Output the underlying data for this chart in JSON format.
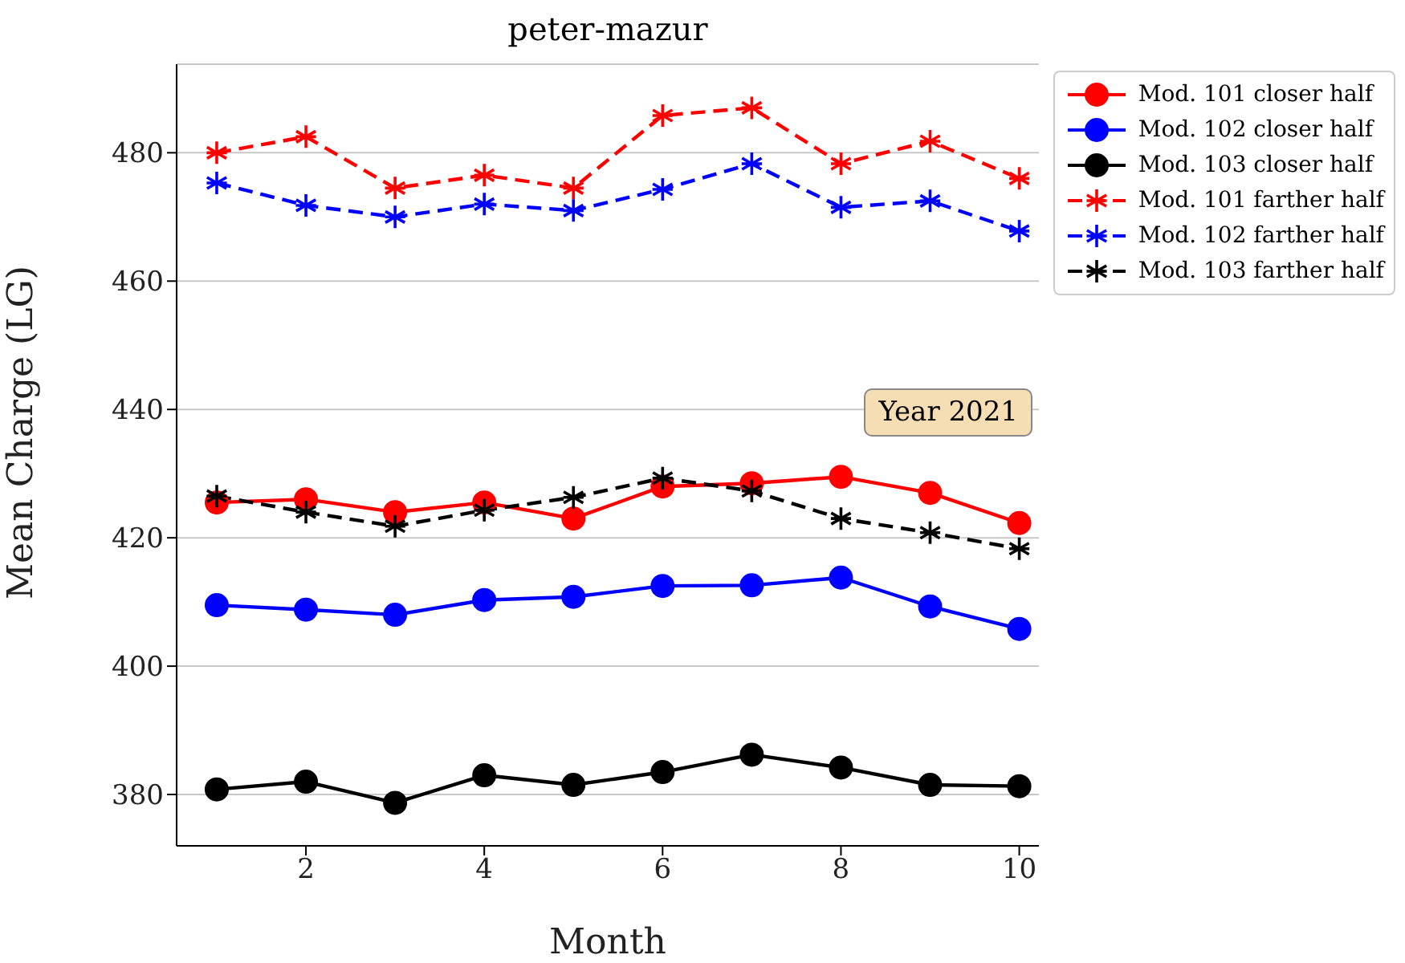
{
  "chart_data": {
    "type": "line",
    "title": "peter-mazur",
    "xlabel": "Month",
    "ylabel": "Mean Charge (LG)",
    "x": [
      1,
      2,
      3,
      4,
      5,
      6,
      7,
      8,
      9,
      10
    ],
    "series": [
      {
        "name": "Mod. 101 closer half",
        "color": "#ff0000",
        "marker": "circle",
        "line_style": "solid",
        "values": [
          425.5,
          426,
          424,
          425.5,
          423,
          428,
          428.5,
          429.5,
          427,
          422.3
        ]
      },
      {
        "name": "Mod. 102 closer half",
        "color": "#0000ff",
        "marker": "circle",
        "line_style": "solid",
        "values": [
          409.5,
          408.8,
          408,
          410.3,
          410.8,
          412.5,
          412.6,
          413.8,
          409.3,
          405.8
        ]
      },
      {
        "name": "Mod. 103 closer half",
        "color": "#000000",
        "marker": "circle",
        "line_style": "solid",
        "values": [
          380.8,
          382,
          378.7,
          383,
          381.5,
          383.5,
          386.2,
          384.2,
          381.5,
          381.3
        ]
      },
      {
        "name": "Mod. 101 farther half",
        "color": "#ff0000",
        "marker": "cross",
        "line_style": "dashed",
        "values": [
          480,
          482.5,
          474.5,
          476.5,
          474.5,
          485.8,
          487,
          478.3,
          481.8,
          476
        ]
      },
      {
        "name": "Mod. 102 farther half",
        "color": "#0000ff",
        "marker": "cross",
        "line_style": "dashed",
        "values": [
          475.3,
          471.8,
          470,
          472,
          471,
          474.3,
          478.3,
          471.5,
          472.5,
          467.8
        ]
      },
      {
        "name": "Mod. 103 farther half",
        "color": "#000000",
        "marker": "cross",
        "line_style": "dashed",
        "values": [
          426.5,
          424,
          421.8,
          424.3,
          426.3,
          429.3,
          427.3,
          423,
          420.8,
          418.3
        ]
      }
    ],
    "xlim": [
      0.55,
      10.22
    ],
    "xticks": [
      2,
      4,
      6,
      8,
      10
    ],
    "ylim": [
      372,
      493.8
    ],
    "yticks": [
      380,
      400,
      420,
      440,
      460,
      480
    ],
    "grid": "y",
    "legend": "top right",
    "annotations": [
      "Year 2021"
    ]
  }
}
